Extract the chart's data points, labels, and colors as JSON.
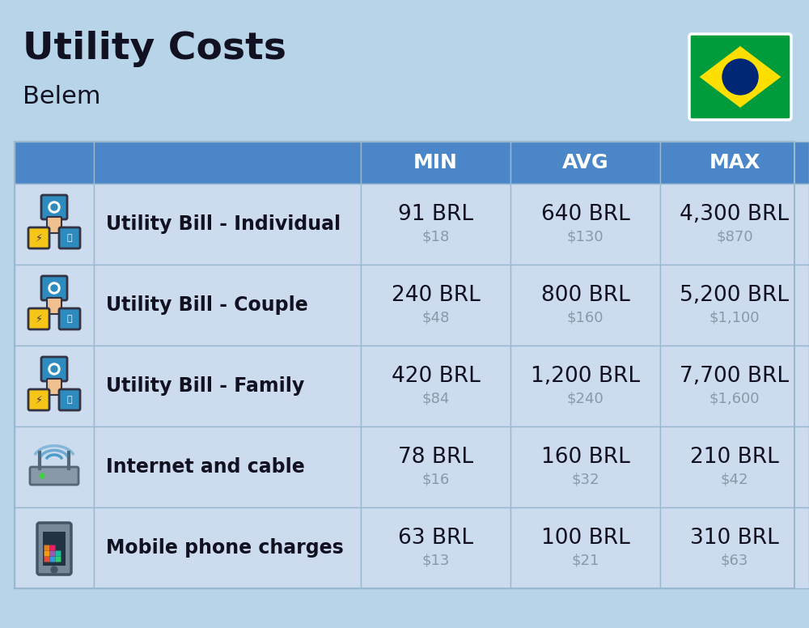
{
  "title": "Utility Costs",
  "subtitle": "Belem",
  "background_color": "#b8d4e8",
  "header_bg_color": "#4a86c8",
  "header_text_color": "#ffffff",
  "row_bg_color": "#ccdcee",
  "divider_color": "#9ab8d0",
  "title_fontsize": 34,
  "subtitle_fontsize": 22,
  "header_fontsize": 18,
  "label_fontsize": 17,
  "value_fontsize": 19,
  "subvalue_fontsize": 13,
  "rows": [
    {
      "label": "Utility Bill - Individual",
      "min_brl": "91 BRL",
      "min_usd": "$18",
      "avg_brl": "640 BRL",
      "avg_usd": "$130",
      "max_brl": "4,300 BRL",
      "max_usd": "$870"
    },
    {
      "label": "Utility Bill - Couple",
      "min_brl": "240 BRL",
      "min_usd": "$48",
      "avg_brl": "800 BRL",
      "avg_usd": "$160",
      "max_brl": "5,200 BRL",
      "max_usd": "$1,100"
    },
    {
      "label": "Utility Bill - Family",
      "min_brl": "420 BRL",
      "min_usd": "$84",
      "avg_brl": "1,200 BRL",
      "avg_usd": "$240",
      "max_brl": "7,700 BRL",
      "max_usd": "$1,600"
    },
    {
      "label": "Internet and cable",
      "min_brl": "78 BRL",
      "min_usd": "$16",
      "avg_brl": "160 BRL",
      "avg_usd": "$32",
      "max_brl": "210 BRL",
      "max_usd": "$42"
    },
    {
      "label": "Mobile phone charges",
      "min_brl": "63 BRL",
      "min_usd": "$13",
      "avg_brl": "100 BRL",
      "avg_usd": "$21",
      "max_brl": "310 BRL",
      "max_usd": "$63"
    }
  ],
  "label_color": "#111122",
  "value_color": "#111122",
  "subvalue_color": "#8899aa",
  "flag_green": "#009c3b",
  "flag_yellow": "#ffdf00",
  "flag_blue": "#002776",
  "icon_teal": "#2e8bc0",
  "icon_yellow": "#f5c518",
  "icon_dark": "#333344"
}
